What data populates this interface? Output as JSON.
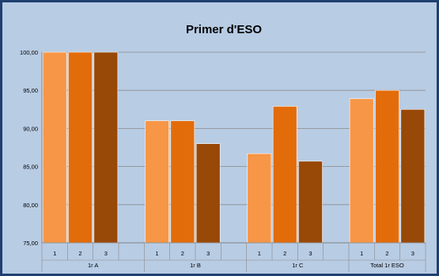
{
  "chart_data": {
    "type": "bar",
    "title": "Primer d'ESO",
    "xlabel": "",
    "ylabel": "",
    "ylim": [
      75,
      100
    ],
    "y_ticks": [
      "75,00",
      "80,00",
      "85,00",
      "90,00",
      "95,00",
      "100,00"
    ],
    "groups": [
      {
        "label": "1r A",
        "bars": [
          {
            "label": "1",
            "value": 100.0
          },
          {
            "label": "2",
            "value": 100.0
          },
          {
            "label": "3",
            "value": 100.0
          }
        ]
      },
      {
        "label": "1r B",
        "bars": [
          {
            "label": "1",
            "value": 91.0
          },
          {
            "label": "2",
            "value": 91.0
          },
          {
            "label": "3",
            "value": 88.0
          }
        ]
      },
      {
        "label": "1r C",
        "bars": [
          {
            "label": "1",
            "value": 86.7
          },
          {
            "label": "2",
            "value": 92.9
          },
          {
            "label": "3",
            "value": 85.7
          }
        ]
      },
      {
        "label": "Total 1r ESO",
        "bars": [
          {
            "label": "1",
            "value": 93.9
          },
          {
            "label": "2",
            "value": 95.0
          },
          {
            "label": "3",
            "value": 92.5
          }
        ]
      }
    ],
    "colors": [
      "#f79646",
      "#e36c0a",
      "#984807"
    ],
    "grid": true,
    "legend": "none"
  }
}
